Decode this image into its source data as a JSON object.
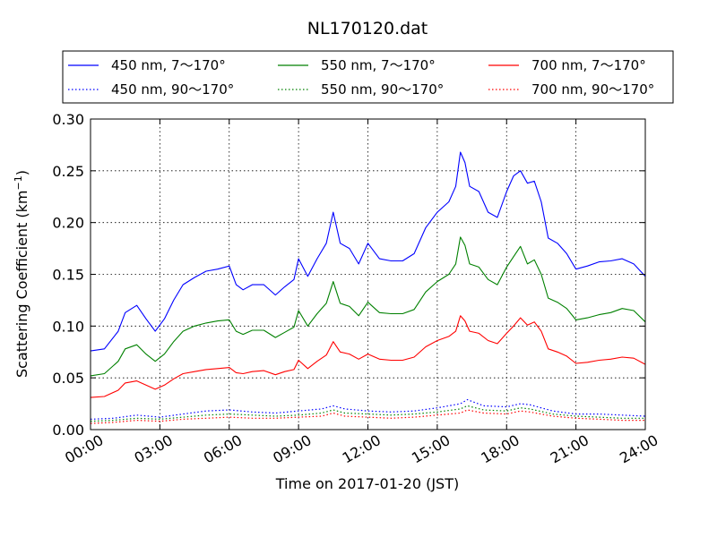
{
  "chart_data": {
    "type": "line",
    "title": "NL170120.dat",
    "xlabel": "Time on 2017-01-20 (JST)",
    "ylabel_main": "Scattering Coefficient (km",
    "ylabel_sup": "−1",
    "ylabel_close": ")",
    "xlim": [
      0,
      24
    ],
    "ylim": [
      0,
      0.3
    ],
    "grid": true,
    "legend_position": "top",
    "x_ticks": [
      {
        "value": 0,
        "label": "00:00"
      },
      {
        "value": 3,
        "label": "03:00"
      },
      {
        "value": 6,
        "label": "06:00"
      },
      {
        "value": 9,
        "label": "09:00"
      },
      {
        "value": 12,
        "label": "12:00"
      },
      {
        "value": 15,
        "label": "15:00"
      },
      {
        "value": 18,
        "label": "18:00"
      },
      {
        "value": 21,
        "label": "21:00"
      },
      {
        "value": 24,
        "label": "24:00"
      }
    ],
    "y_ticks": [
      {
        "value": 0,
        "label": "0.00"
      },
      {
        "value": 0.05,
        "label": "0.05"
      },
      {
        "value": 0.1,
        "label": "0.10"
      },
      {
        "value": 0.15,
        "label": "0.15"
      },
      {
        "value": 0.2,
        "label": "0.20"
      },
      {
        "value": 0.25,
        "label": "0.25"
      },
      {
        "value": 0.3,
        "label": "0.30"
      }
    ],
    "series": [
      {
        "name": "450 nm, 7～170°",
        "color": "#0000ff",
        "style": "solid",
        "x": [
          0,
          0.6,
          1.2,
          1.5,
          2.0,
          2.4,
          2.8,
          3.2,
          3.6,
          4.0,
          4.5,
          5.0,
          5.5,
          6.0,
          6.3,
          6.6,
          7.0,
          7.5,
          8.0,
          8.4,
          8.8,
          9.0,
          9.4,
          9.8,
          10.2,
          10.5,
          10.8,
          11.2,
          11.6,
          12.0,
          12.5,
          13.0,
          13.5,
          14.0,
          14.5,
          15.0,
          15.5,
          15.8,
          16.0,
          16.2,
          16.4,
          16.8,
          17.2,
          17.6,
          18.0,
          18.3,
          18.6,
          18.9,
          19.2,
          19.5,
          19.8,
          20.2,
          20.6,
          21.0,
          21.5,
          22.0,
          22.5,
          23.0,
          23.5,
          24.0
        ],
        "y": [
          0.076,
          0.078,
          0.095,
          0.113,
          0.12,
          0.107,
          0.095,
          0.107,
          0.125,
          0.14,
          0.147,
          0.153,
          0.155,
          0.158,
          0.14,
          0.135,
          0.14,
          0.14,
          0.13,
          0.138,
          0.145,
          0.165,
          0.148,
          0.165,
          0.18,
          0.21,
          0.18,
          0.175,
          0.16,
          0.18,
          0.165,
          0.163,
          0.163,
          0.17,
          0.195,
          0.21,
          0.22,
          0.235,
          0.268,
          0.258,
          0.235,
          0.23,
          0.21,
          0.205,
          0.23,
          0.245,
          0.25,
          0.238,
          0.24,
          0.22,
          0.185,
          0.18,
          0.17,
          0.155,
          0.158,
          0.162,
          0.163,
          0.165,
          0.16,
          0.148
        ]
      },
      {
        "name": "550 nm, 7～170°",
        "color": "#008000",
        "style": "solid",
        "x": [
          0,
          0.6,
          1.2,
          1.5,
          2.0,
          2.4,
          2.8,
          3.2,
          3.6,
          4.0,
          4.5,
          5.0,
          5.5,
          6.0,
          6.3,
          6.6,
          7.0,
          7.5,
          8.0,
          8.4,
          8.8,
          9.0,
          9.4,
          9.8,
          10.2,
          10.5,
          10.8,
          11.2,
          11.6,
          12.0,
          12.5,
          13.0,
          13.5,
          14.0,
          14.5,
          15.0,
          15.5,
          15.8,
          16.0,
          16.2,
          16.4,
          16.8,
          17.2,
          17.6,
          18.0,
          18.3,
          18.6,
          18.9,
          19.2,
          19.5,
          19.8,
          20.2,
          20.6,
          21.0,
          21.5,
          22.0,
          22.5,
          23.0,
          23.5,
          24.0
        ],
        "y": [
          0.052,
          0.054,
          0.066,
          0.078,
          0.082,
          0.073,
          0.066,
          0.073,
          0.085,
          0.095,
          0.1,
          0.103,
          0.105,
          0.106,
          0.095,
          0.092,
          0.096,
          0.096,
          0.089,
          0.094,
          0.099,
          0.115,
          0.1,
          0.112,
          0.122,
          0.143,
          0.122,
          0.119,
          0.11,
          0.123,
          0.113,
          0.112,
          0.112,
          0.116,
          0.133,
          0.143,
          0.15,
          0.16,
          0.186,
          0.178,
          0.16,
          0.157,
          0.145,
          0.14,
          0.157,
          0.167,
          0.177,
          0.16,
          0.164,
          0.15,
          0.127,
          0.123,
          0.117,
          0.106,
          0.108,
          0.111,
          0.113,
          0.117,
          0.115,
          0.104
        ]
      },
      {
        "name": "700 nm, 7～170°",
        "color": "#ff0000",
        "style": "solid",
        "x": [
          0,
          0.6,
          1.2,
          1.5,
          2.0,
          2.4,
          2.8,
          3.2,
          3.6,
          4.0,
          4.5,
          5.0,
          5.5,
          6.0,
          6.3,
          6.6,
          7.0,
          7.5,
          8.0,
          8.4,
          8.8,
          9.0,
          9.4,
          9.8,
          10.2,
          10.5,
          10.8,
          11.2,
          11.6,
          12.0,
          12.5,
          13.0,
          13.5,
          14.0,
          14.5,
          15.0,
          15.5,
          15.8,
          16.0,
          16.2,
          16.4,
          16.8,
          17.2,
          17.6,
          18.0,
          18.3,
          18.6,
          18.9,
          19.2,
          19.5,
          19.8,
          20.2,
          20.6,
          21.0,
          21.5,
          22.0,
          22.5,
          23.0,
          23.5,
          24.0
        ],
        "y": [
          0.031,
          0.032,
          0.038,
          0.045,
          0.047,
          0.043,
          0.039,
          0.043,
          0.049,
          0.054,
          0.056,
          0.058,
          0.059,
          0.06,
          0.055,
          0.054,
          0.056,
          0.057,
          0.053,
          0.056,
          0.058,
          0.067,
          0.059,
          0.066,
          0.072,
          0.085,
          0.075,
          0.073,
          0.068,
          0.073,
          0.068,
          0.067,
          0.067,
          0.07,
          0.08,
          0.086,
          0.09,
          0.095,
          0.11,
          0.105,
          0.095,
          0.093,
          0.086,
          0.083,
          0.093,
          0.1,
          0.108,
          0.101,
          0.104,
          0.095,
          0.078,
          0.075,
          0.071,
          0.064,
          0.065,
          0.067,
          0.068,
          0.07,
          0.069,
          0.063
        ]
      },
      {
        "name": "450 nm, 90～170°",
        "color": "#0000ff",
        "style": "dotted",
        "x": [
          0,
          1,
          2,
          3,
          4,
          5,
          6,
          7,
          8,
          9,
          10,
          10.5,
          11,
          12,
          13,
          14,
          15,
          16,
          16.3,
          17,
          18,
          18.6,
          19,
          20,
          21,
          22,
          23,
          24
        ],
        "y": [
          0.01,
          0.011,
          0.014,
          0.012,
          0.015,
          0.018,
          0.019,
          0.017,
          0.016,
          0.018,
          0.02,
          0.023,
          0.02,
          0.018,
          0.017,
          0.018,
          0.021,
          0.025,
          0.029,
          0.023,
          0.022,
          0.025,
          0.024,
          0.018,
          0.015,
          0.015,
          0.014,
          0.013
        ]
      },
      {
        "name": "550 nm, 90～170°",
        "color": "#008000",
        "style": "dotted",
        "x": [
          0,
          1,
          2,
          3,
          4,
          5,
          6,
          7,
          8,
          9,
          10,
          10.5,
          11,
          12,
          13,
          14,
          15,
          16,
          16.3,
          17,
          18,
          18.6,
          19,
          20,
          21,
          22,
          23,
          24
        ],
        "y": [
          0.008,
          0.009,
          0.011,
          0.01,
          0.012,
          0.014,
          0.015,
          0.014,
          0.013,
          0.014,
          0.016,
          0.019,
          0.016,
          0.015,
          0.014,
          0.015,
          0.017,
          0.02,
          0.023,
          0.019,
          0.018,
          0.021,
          0.02,
          0.015,
          0.013,
          0.012,
          0.011,
          0.011
        ]
      },
      {
        "name": "700 nm, 90～170°",
        "color": "#ff0000",
        "style": "dotted",
        "x": [
          0,
          1,
          2,
          3,
          4,
          5,
          6,
          7,
          8,
          9,
          10,
          10.5,
          11,
          12,
          13,
          14,
          15,
          16,
          16.3,
          17,
          18,
          18.6,
          19,
          20,
          21,
          22,
          23,
          24
        ],
        "y": [
          0.006,
          0.007,
          0.009,
          0.008,
          0.01,
          0.011,
          0.012,
          0.011,
          0.011,
          0.012,
          0.013,
          0.016,
          0.013,
          0.012,
          0.011,
          0.012,
          0.014,
          0.016,
          0.019,
          0.016,
          0.015,
          0.018,
          0.017,
          0.013,
          0.011,
          0.01,
          0.009,
          0.009
        ]
      }
    ]
  }
}
